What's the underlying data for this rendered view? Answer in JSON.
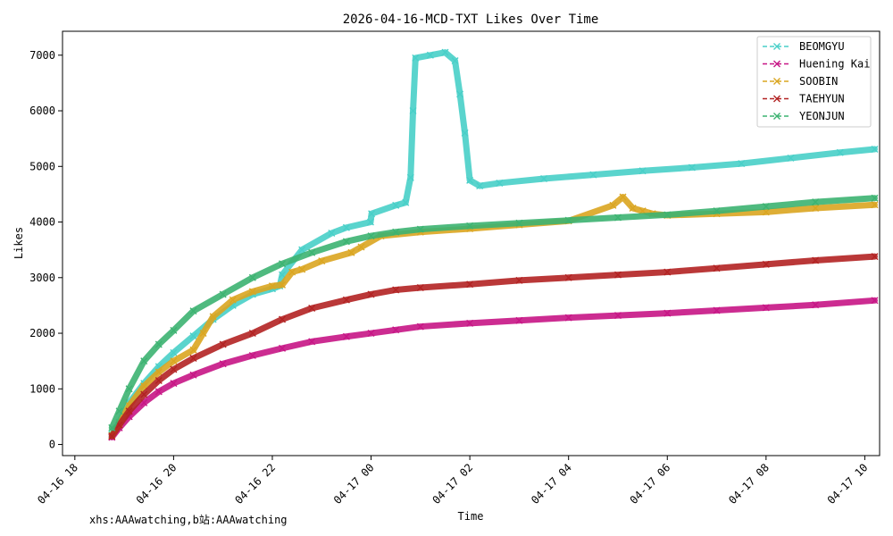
{
  "watermark": "xhs:AAAwatching,b站:AAAwatching",
  "chart_data": {
    "type": "line",
    "title": "2026-04-16-MCD-TXT Likes Over Time",
    "xlabel": "Time",
    "ylabel": "Likes",
    "xlim_hours": [
      -0.25,
      16.3
    ],
    "ylim": [
      -200,
      7430
    ],
    "x_unit": "hours since 04-16 18:00",
    "x_ticks": [
      {
        "h": 0,
        "label": "04-16 18"
      },
      {
        "h": 2,
        "label": "04-16 20"
      },
      {
        "h": 4,
        "label": "04-16 22"
      },
      {
        "h": 6,
        "label": "04-17 00"
      },
      {
        "h": 8,
        "label": "04-17 02"
      },
      {
        "h": 10,
        "label": "04-17 04"
      },
      {
        "h": 12,
        "label": "04-17 06"
      },
      {
        "h": 14,
        "label": "04-17 08"
      },
      {
        "h": 16,
        "label": "04-17 10"
      }
    ],
    "y_ticks": [
      0,
      1000,
      2000,
      3000,
      4000,
      5000,
      6000,
      7000
    ],
    "legend_position": "top-right",
    "series": [
      {
        "name": "BEOMGYU",
        "color": "#48cfc8",
        "x": [
          0.75,
          0.9,
          1.1,
          1.4,
          1.7,
          2.0,
          2.4,
          2.8,
          3.2,
          3.6,
          4.0,
          4.15,
          4.2,
          4.6,
          5.2,
          5.5,
          5.99,
          6.01,
          6.5,
          6.7,
          6.8,
          6.85,
          6.9,
          7.2,
          7.5,
          7.7,
          7.8,
          7.9,
          8.0,
          8.2,
          8.6,
          9.5,
          10.5,
          11.5,
          12.5,
          13.5,
          14.5,
          15.5,
          16.2
        ],
        "y": [
          180,
          400,
          750,
          1100,
          1400,
          1650,
          1950,
          2250,
          2500,
          2700,
          2800,
          2850,
          3050,
          3500,
          3800,
          3900,
          4000,
          4150,
          4300,
          4350,
          4800,
          6000,
          6950,
          7000,
          7050,
          6900,
          6300,
          5600,
          4750,
          4650,
          4700,
          4780,
          4850,
          4920,
          4980,
          5050,
          5150,
          5250,
          5310
        ]
      },
      {
        "name": "Huening Kai",
        "color": "#c71585",
        "x": [
          0.75,
          0.9,
          1.1,
          1.4,
          1.7,
          2.0,
          2.4,
          3.0,
          3.6,
          4.2,
          4.8,
          5.5,
          6.0,
          6.5,
          7.0,
          8.0,
          9.0,
          10.0,
          11.0,
          12.0,
          13.0,
          14.0,
          15.0,
          16.2
        ],
        "y": [
          130,
          300,
          500,
          750,
          950,
          1100,
          1250,
          1450,
          1600,
          1730,
          1850,
          1940,
          2000,
          2060,
          2120,
          2180,
          2230,
          2280,
          2320,
          2360,
          2410,
          2460,
          2510,
          2590
        ]
      },
      {
        "name": "SOOBIN",
        "color": "#daa520",
        "x": [
          0.75,
          0.9,
          1.1,
          1.4,
          1.7,
          2.0,
          2.4,
          2.6,
          2.8,
          3.2,
          3.6,
          4.0,
          4.2,
          4.4,
          4.6,
          5.0,
          5.6,
          5.8,
          6.2,
          7.0,
          8.0,
          9.0,
          10.0,
          10.9,
          11.1,
          11.3,
          11.5,
          11.7,
          12.0,
          13.0,
          14.0,
          15.0,
          16.2
        ],
        "y": [
          160,
          380,
          700,
          1050,
          1300,
          1500,
          1700,
          2000,
          2300,
          2600,
          2750,
          2850,
          2870,
          3100,
          3150,
          3300,
          3450,
          3550,
          3750,
          3820,
          3880,
          3950,
          4020,
          4300,
          4450,
          4250,
          4200,
          4150,
          4120,
          4150,
          4180,
          4250,
          4310
        ]
      },
      {
        "name": "TAEHYUN",
        "color": "#b22222",
        "x": [
          0.75,
          0.9,
          1.1,
          1.4,
          1.7,
          2.0,
          2.4,
          3.0,
          3.6,
          4.2,
          4.8,
          5.5,
          6.0,
          6.5,
          7.0,
          8.0,
          9.0,
          10.0,
          11.0,
          12.0,
          13.0,
          14.0,
          15.0,
          16.2
        ],
        "y": [
          150,
          350,
          600,
          900,
          1150,
          1350,
          1550,
          1800,
          2000,
          2250,
          2450,
          2600,
          2700,
          2780,
          2820,
          2880,
          2950,
          3000,
          3050,
          3100,
          3170,
          3240,
          3310,
          3380
        ]
      },
      {
        "name": "YEONJUN",
        "color": "#3cb371",
        "x": [
          0.75,
          0.9,
          1.1,
          1.4,
          1.7,
          2.0,
          2.4,
          3.0,
          3.6,
          4.2,
          4.8,
          5.5,
          6.0,
          6.5,
          7.0,
          8.0,
          9.0,
          10.0,
          11.0,
          12.0,
          13.0,
          14.0,
          15.0,
          16.2
        ],
        "y": [
          300,
          600,
          1000,
          1500,
          1800,
          2050,
          2400,
          2700,
          3000,
          3250,
          3450,
          3650,
          3750,
          3820,
          3870,
          3930,
          3980,
          4030,
          4080,
          4130,
          4200,
          4280,
          4360,
          4430
        ]
      }
    ]
  }
}
